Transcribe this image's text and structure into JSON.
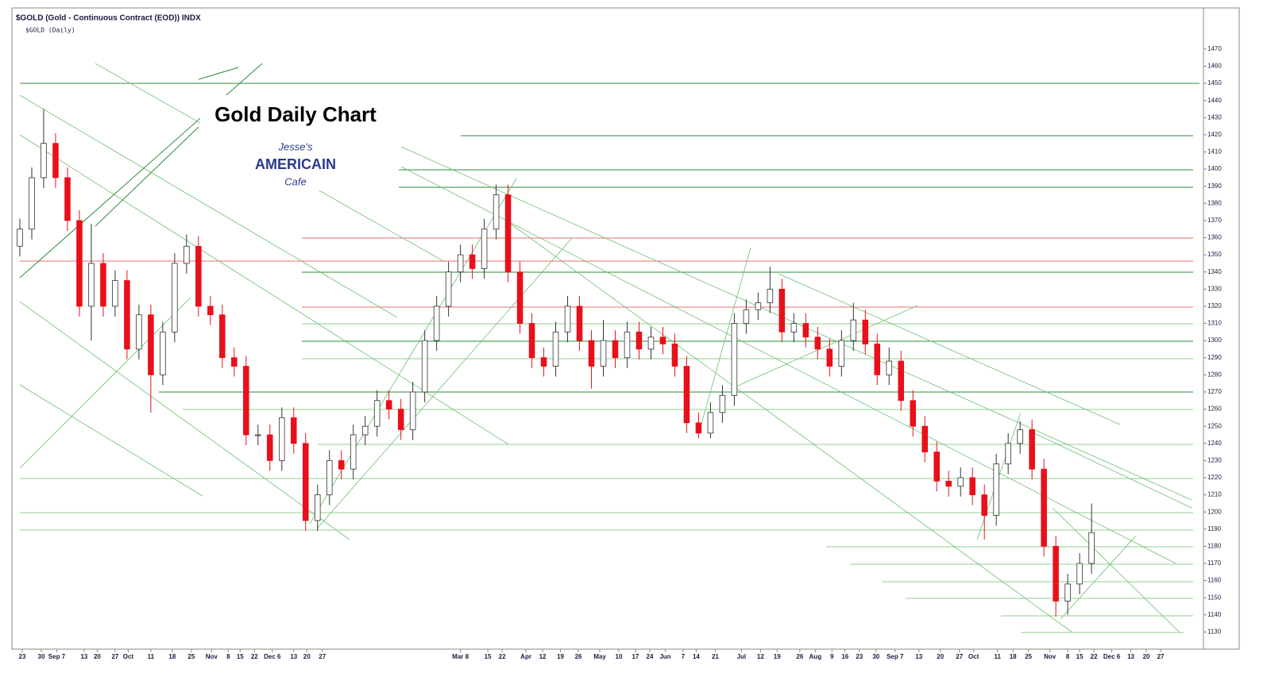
{
  "chart_data": {
    "type": "candlestick",
    "header": "$GOLD (Gold - Continuous Contract (EOD)) INDX",
    "subheader": "$GOLD (Daily)",
    "title": "Gold Daily Chart",
    "logo": [
      "Jesse's",
      "AMERICAIN",
      "Cafe"
    ],
    "up_color": "#ffffff",
    "down_color": "#e8101a",
    "x": [
      0,
      1,
      2,
      3,
      4,
      5,
      6,
      7,
      8,
      9,
      10,
      11,
      12,
      13,
      14,
      15,
      16,
      17,
      18,
      19,
      20,
      21,
      22,
      23,
      24,
      25,
      26,
      27,
      28,
      29,
      30,
      31,
      32,
      33,
      34,
      35,
      36,
      37,
      38,
      39,
      40,
      41,
      42,
      43,
      44,
      45,
      46,
      47,
      48,
      49,
      50,
      51,
      52,
      53,
      54,
      55,
      56,
      57,
      58,
      59,
      60,
      61,
      62,
      63,
      64,
      65,
      66,
      67,
      68,
      69,
      70,
      71,
      72,
      73,
      74,
      75,
      76,
      77,
      78,
      79,
      80,
      81,
      82,
      83,
      84,
      85,
      86,
      87,
      88,
      89,
      90
    ],
    "open": [
      1355,
      1365,
      1395,
      1415,
      1395,
      1370,
      1320,
      1345,
      1320,
      1335,
      1295,
      1315,
      1280,
      1305,
      1345,
      1355,
      1320,
      1315,
      1290,
      1285,
      1245,
      1245,
      1230,
      1255,
      1240,
      1195,
      1210,
      1230,
      1225,
      1245,
      1250,
      1265,
      1260,
      1248,
      1270,
      1300,
      1320,
      1340,
      1350,
      1342,
      1365,
      1385,
      1340,
      1310,
      1290,
      1285,
      1305,
      1320,
      1300,
      1285,
      1300,
      1290,
      1305,
      1295,
      1302,
      1298,
      1285,
      1252,
      1246,
      1258,
      1268,
      1310,
      1318,
      1322,
      1330,
      1305,
      1310,
      1302,
      1295,
      1285,
      1300,
      1312,
      1298,
      1280,
      1288,
      1265,
      1250,
      1235,
      1218,
      1215,
      1220,
      1210,
      1198,
      1228,
      1240,
      1248,
      1225,
      1180,
      1148,
      1158,
      1170
    ],
    "high": [
      1371,
      1401,
      1435,
      1421,
      1401,
      1376,
      1368,
      1351,
      1341,
      1341,
      1321,
      1321,
      1311,
      1351,
      1362,
      1361,
      1326,
      1321,
      1296,
      1291,
      1251,
      1251,
      1261,
      1261,
      1246,
      1216,
      1236,
      1236,
      1251,
      1256,
      1271,
      1271,
      1266,
      1276,
      1306,
      1326,
      1346,
      1356,
      1356,
      1371,
      1391,
      1391,
      1346,
      1316,
      1296,
      1311,
      1326,
      1326,
      1306,
      1312,
      1306,
      1311,
      1311,
      1308,
      1308,
      1304,
      1291,
      1258,
      1264,
      1274,
      1316,
      1324,
      1328,
      1343,
      1336,
      1316,
      1316,
      1308,
      1301,
      1306,
      1322,
      1318,
      1304,
      1296,
      1294,
      1271,
      1256,
      1241,
      1224,
      1226,
      1226,
      1216,
      1234,
      1246,
      1253,
      1254,
      1231,
      1186,
      1164,
      1176,
      1205
    ],
    "low": [
      1349,
      1359,
      1389,
      1389,
      1364,
      1314,
      1300,
      1314,
      1314,
      1289,
      1289,
      1258,
      1274,
      1299,
      1339,
      1314,
      1309,
      1284,
      1279,
      1239,
      1239,
      1224,
      1224,
      1234,
      1189,
      1189,
      1204,
      1219,
      1219,
      1239,
      1244,
      1254,
      1242,
      1242,
      1264,
      1294,
      1314,
      1334,
      1336,
      1336,
      1359,
      1334,
      1304,
      1284,
      1279,
      1279,
      1299,
      1294,
      1272,
      1279,
      1284,
      1284,
      1289,
      1289,
      1292,
      1279,
      1246,
      1243,
      1243,
      1252,
      1262,
      1304,
      1312,
      1316,
      1299,
      1299,
      1296,
      1289,
      1279,
      1279,
      1294,
      1292,
      1274,
      1274,
      1259,
      1244,
      1229,
      1212,
      1209,
      1209,
      1204,
      1184,
      1192,
      1222,
      1234,
      1219,
      1174,
      1139,
      1140,
      1152,
      1164
    ],
    "close": [
      1365,
      1395,
      1415,
      1395,
      1370,
      1320,
      1345,
      1320,
      1335,
      1295,
      1315,
      1280,
      1305,
      1345,
      1355,
      1320,
      1315,
      1290,
      1285,
      1245,
      1245,
      1230,
      1255,
      1240,
      1195,
      1210,
      1230,
      1225,
      1245,
      1250,
      1265,
      1260,
      1248,
      1270,
      1300,
      1320,
      1340,
      1350,
      1342,
      1365,
      1385,
      1340,
      1310,
      1290,
      1285,
      1305,
      1320,
      1300,
      1285,
      1300,
      1290,
      1305,
      1295,
      1302,
      1298,
      1285,
      1252,
      1246,
      1258,
      1268,
      1310,
      1318,
      1322,
      1330,
      1305,
      1310,
      1302,
      1295,
      1285,
      1300,
      1312,
      1298,
      1280,
      1288,
      1265,
      1250,
      1235,
      1218,
      1215,
      1220,
      1210,
      1198,
      1228,
      1240,
      1248,
      1225,
      1180,
      1148,
      1158,
      1170,
      1188
    ],
    "xlim": [
      -0.2,
      99.2
    ],
    "xticks": [
      {
        "value": 0.2,
        "label": "23"
      },
      {
        "value": 1.8,
        "label": "30"
      },
      {
        "value": 3.1,
        "label": "Sep 7"
      },
      {
        "value": 5.4,
        "label": "13"
      },
      {
        "value": 6.5,
        "label": "20"
      },
      {
        "value": 8,
        "label": "27"
      },
      {
        "value": 9.1,
        "label": "Oct"
      },
      {
        "value": 11,
        "label": "11"
      },
      {
        "value": 12.8,
        "label": "18"
      },
      {
        "value": 14.4,
        "label": "25"
      },
      {
        "value": 16.1,
        "label": "Nov"
      },
      {
        "value": 17.5,
        "label": "8"
      },
      {
        "value": 18.5,
        "label": "15"
      },
      {
        "value": 19.7,
        "label": "22"
      },
      {
        "value": 21.2,
        "label": "Dec 6"
      },
      {
        "value": 23,
        "label": "13"
      },
      {
        "value": 24.1,
        "label": "20"
      },
      {
        "value": 25.4,
        "label": "27"
      },
      {
        "value": 37,
        "label": "Mar 8"
      },
      {
        "value": 39.3,
        "label": "15"
      },
      {
        "value": 40.5,
        "label": "22"
      },
      {
        "value": 42.5,
        "label": "Apr"
      },
      {
        "value": 43.9,
        "label": "12"
      },
      {
        "value": 45.4,
        "label": "19"
      },
      {
        "value": 46.9,
        "label": "26"
      },
      {
        "value": 48.7,
        "label": "May"
      },
      {
        "value": 50.3,
        "label": "10"
      },
      {
        "value": 51.7,
        "label": "17"
      },
      {
        "value": 52.9,
        "label": "24"
      },
      {
        "value": 54.2,
        "label": "Jun"
      },
      {
        "value": 55.7,
        "label": "7"
      },
      {
        "value": 56.8,
        "label": "14"
      },
      {
        "value": 58.4,
        "label": "21"
      },
      {
        "value": 60.6,
        "label": "Jul"
      },
      {
        "value": 62.2,
        "label": "12"
      },
      {
        "value": 63.6,
        "label": "19"
      },
      {
        "value": 65.5,
        "label": "26"
      },
      {
        "value": 66.8,
        "label": "Aug"
      },
      {
        "value": 68.2,
        "label": "9"
      },
      {
        "value": 69.3,
        "label": "16"
      },
      {
        "value": 70.5,
        "label": "23"
      },
      {
        "value": 71.9,
        "label": "30"
      },
      {
        "value": 73.5,
        "label": "Sep 7"
      },
      {
        "value": 75.5,
        "label": "13"
      },
      {
        "value": 77.3,
        "label": "20"
      },
      {
        "value": 78.9,
        "label": "27"
      },
      {
        "value": 80.1,
        "label": "Oct"
      },
      {
        "value": 82.1,
        "label": "11"
      },
      {
        "value": 83.4,
        "label": "18"
      },
      {
        "value": 84.7,
        "label": "25"
      },
      {
        "value": 86.5,
        "label": "Nov"
      },
      {
        "value": 88,
        "label": "8"
      },
      {
        "value": 89,
        "label": "15"
      },
      {
        "value": 90.2,
        "label": "22"
      },
      {
        "value": 91.7,
        "label": "Dec 6"
      },
      {
        "value": 93.3,
        "label": "13"
      },
      {
        "value": 94.6,
        "label": "20"
      },
      {
        "value": 95.8,
        "label": "27"
      }
    ],
    "ylim": [
      1120,
      1494
    ],
    "yticks": [
      1130,
      1140,
      1150,
      1160,
      1170,
      1180,
      1190,
      1200,
      1210,
      1220,
      1230,
      1240,
      1250,
      1260,
      1270,
      1280,
      1290,
      1300,
      1310,
      1320,
      1330,
      1340,
      1350,
      1360,
      1370,
      1380,
      1390,
      1400,
      1410,
      1420,
      1430,
      1440,
      1450,
      1460,
      1470
    ]
  }
}
